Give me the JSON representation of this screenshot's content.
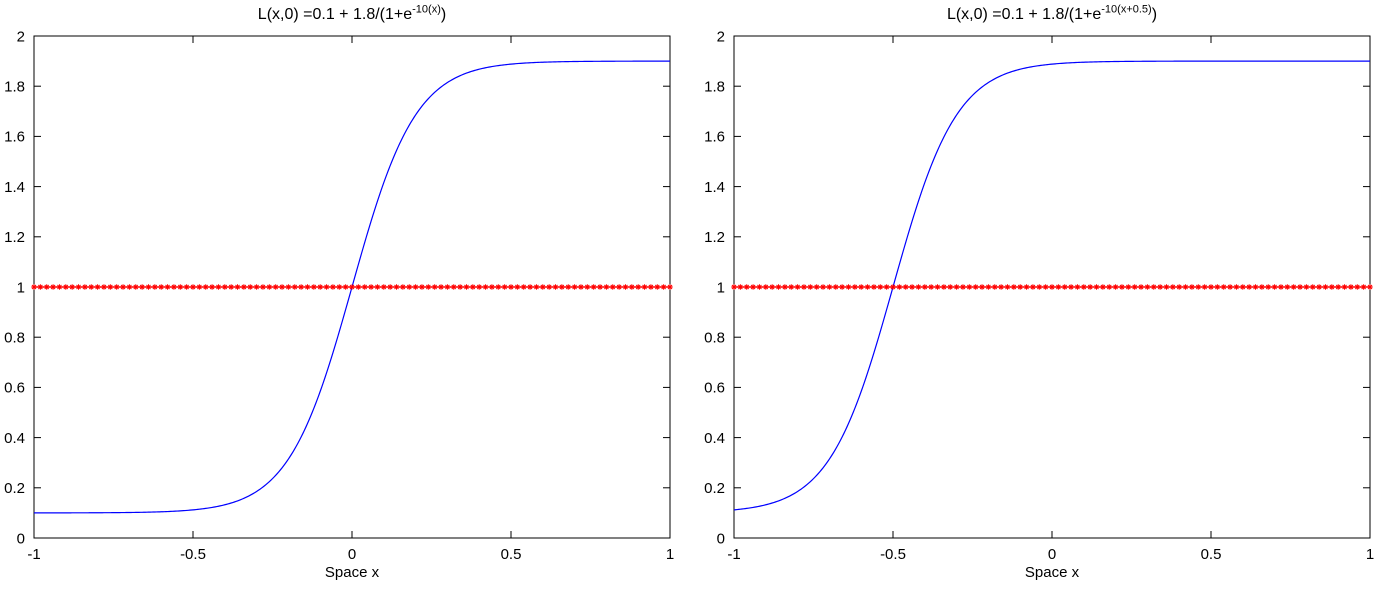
{
  "figure": {
    "background": "#ffffff",
    "axis_color": "#000000",
    "curve_color": "#0000ff",
    "marker_color": "#ff0000"
  },
  "chart_data": [
    {
      "type": "line",
      "title": {
        "prefix": "L(x,0) =0.1 + 1.8/(1+e",
        "sup": "-10(x)",
        "suffix": ")"
      },
      "title_text": "L(x,0) = 0.1 + 1.8/(1+e^(-10(x)))",
      "xlabel": "Space x",
      "xlim": [
        -1,
        1
      ],
      "ylim": [
        0,
        2
      ],
      "xticks": [
        -1,
        -0.5,
        0,
        0.5,
        1
      ],
      "xtick_labels": [
        "-1",
        "-0.5",
        "0",
        "0.5",
        "1"
      ],
      "yticks": [
        0,
        0.2,
        0.4,
        0.6,
        0.8,
        1,
        1.2,
        1.4,
        1.6,
        1.8,
        2
      ],
      "ytick_labels": [
        "0",
        "0.2",
        "0.4",
        "0.6",
        "0.8",
        "1",
        "1.2",
        "1.4",
        "1.6",
        "1.8",
        "2"
      ],
      "grid": false,
      "legend": null,
      "series": [
        {
          "name": "logistic-initial-condition",
          "style": "curve",
          "color": "#0000ff",
          "line_width": 1.2,
          "formula": {
            "offset": 0.1,
            "amplitude": 1.8,
            "rate": 10,
            "xshift": 0
          }
        },
        {
          "name": "constant-one-star-markers",
          "style": "markers",
          "color": "#ff0000",
          "marker": "*",
          "y": 1,
          "x_start": -1,
          "x_end": 1,
          "marker_count": 101
        }
      ]
    },
    {
      "type": "line",
      "title": {
        "prefix": "L(x,0) =0.1 + 1.8/(1+e",
        "sup": "-10(x+0.5)",
        "suffix": ")"
      },
      "title_text": "L(x,0) = 0.1 + 1.8/(1+e^(-10(x+0.5)))",
      "xlabel": "Space x",
      "xlim": [
        -1,
        1
      ],
      "ylim": [
        0,
        2
      ],
      "xticks": [
        -1,
        -0.5,
        0,
        0.5,
        1
      ],
      "xtick_labels": [
        "-1",
        "-0.5",
        "0",
        "0.5",
        "1"
      ],
      "yticks": [
        0,
        0.2,
        0.4,
        0.6,
        0.8,
        1,
        1.2,
        1.4,
        1.6,
        1.8,
        2
      ],
      "ytick_labels": [
        "0",
        "0.2",
        "0.4",
        "0.6",
        "0.8",
        "1",
        "1.2",
        "1.4",
        "1.6",
        "1.8",
        "2"
      ],
      "grid": false,
      "legend": null,
      "series": [
        {
          "name": "logistic-initial-condition-shifted",
          "style": "curve",
          "color": "#0000ff",
          "line_width": 1.2,
          "formula": {
            "offset": 0.1,
            "amplitude": 1.8,
            "rate": 10,
            "xshift": 0.5
          }
        },
        {
          "name": "constant-one-star-markers",
          "style": "markers",
          "color": "#ff0000",
          "marker": "*",
          "y": 1,
          "x_start": -1,
          "x_end": 1,
          "marker_count": 101
        }
      ]
    }
  ]
}
